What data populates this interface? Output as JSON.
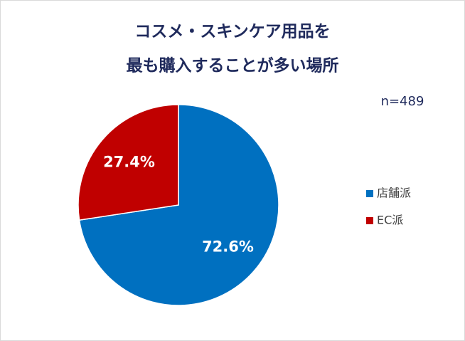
{
  "chart_data": {
    "type": "pie",
    "title": [
      "コスメ・スキンケア用品を",
      "最も購入することが多い場所"
    ],
    "annotation": "n=489",
    "categories": [
      "店舗派",
      "EC派"
    ],
    "values": [
      72.6,
      27.4
    ],
    "value_labels": [
      "72.6%",
      "27.4%"
    ],
    "colors": [
      "#0070c0",
      "#c00000"
    ],
    "legend": "right"
  }
}
